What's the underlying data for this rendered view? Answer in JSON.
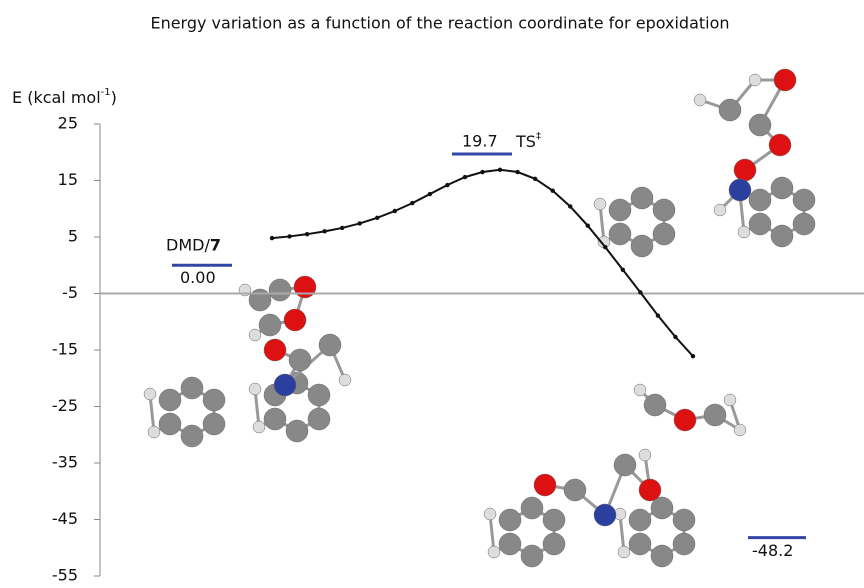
{
  "chart_data": {
    "type": "line",
    "title": "Energy variation as a function of the reaction coordinate for epoxidation",
    "y_label": "E (kcal mol",
    "y_label_sup": "-1",
    "y_label_end": ")",
    "color": "#111111",
    "values": [
      4.8,
      5.1,
      5.5,
      6.0,
      6.6,
      7.4,
      8.4,
      9.6,
      11.0,
      12.6,
      14.2,
      15.6,
      16.5,
      16.9,
      16.5,
      15.3,
      13.2,
      10.4,
      7.0,
      3.2,
      -0.8,
      -4.8,
      -8.9,
      -12.7,
      -16.1
    ],
    "ylim": [
      -55,
      25
    ],
    "yticks": [
      25,
      15,
      5,
      -5,
      -15,
      -25,
      -35,
      -45,
      -55
    ],
    "baseline": -5,
    "levels": [
      {
        "name": "DMD/",
        "name_bold": "7",
        "value": 0,
        "value_label": "0.00",
        "color": "#3346a6"
      },
      {
        "name": "TS",
        "name_sup": "‡",
        "value": 19.7,
        "value_label": "19.7",
        "color": "#3346a6"
      },
      {
        "value": -48.2,
        "value_label": "-48.2",
        "color": "#3346a6"
      }
    ]
  }
}
